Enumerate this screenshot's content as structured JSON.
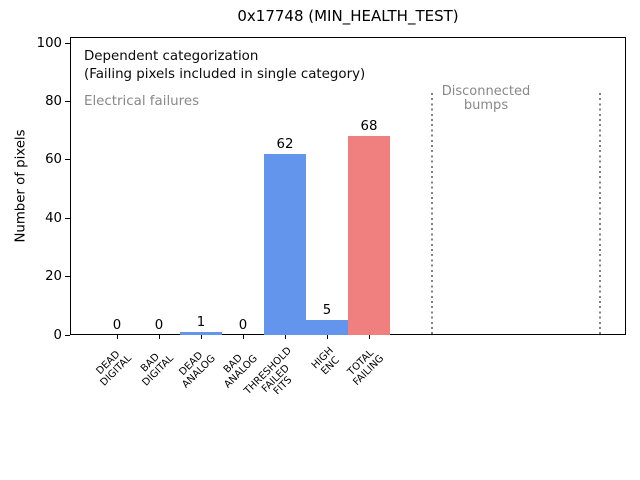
{
  "chart_data": {
    "type": "bar",
    "title": "0x17748 (MIN_HEALTH_TEST)",
    "ylabel": "Number of pixels",
    "xlabel": "",
    "categories": [
      "DEAD\nDIGITAL",
      "BAD\nDIGITAL",
      "DEAD\nANALOG",
      "BAD\nANALOG",
      "THRESHOLD\nFAILED\nFITS",
      "HIGH\nENC",
      "TOTAL\nFAILING"
    ],
    "values": [
      0,
      0,
      1,
      0,
      62,
      5,
      68
    ],
    "value_labels": [
      "0",
      "0",
      "1",
      "0",
      "62",
      "5",
      "68"
    ],
    "bar_colors": [
      "#6495ed",
      "#6495ed",
      "#6495ed",
      "#6495ed",
      "#6495ed",
      "#6495ed",
      "#f08080"
    ],
    "yticks": [
      0,
      20,
      40,
      60,
      80,
      100
    ],
    "ylim": [
      0,
      102
    ],
    "grid": false,
    "legend": false,
    "annotations": [
      {
        "text": "Dependent categorization",
        "color": "#000000"
      },
      {
        "text": "(Failing pixels included in single category)",
        "color": "#000000"
      },
      {
        "text": "Electrical failures",
        "color": "#888888"
      },
      {
        "text": "Disconnected\nbumps",
        "color": "#888888"
      }
    ],
    "separators": {
      "style": "dotted",
      "color": "#808080",
      "x_positions_category_units": [
        7.5,
        11.5
      ]
    }
  },
  "colors": {
    "bar_blue": "#6495ed",
    "bar_coral": "#f08080",
    "gray_text": "#888888",
    "dotted_line": "#808080",
    "spine": "#000000",
    "background": "#ffffff"
  }
}
